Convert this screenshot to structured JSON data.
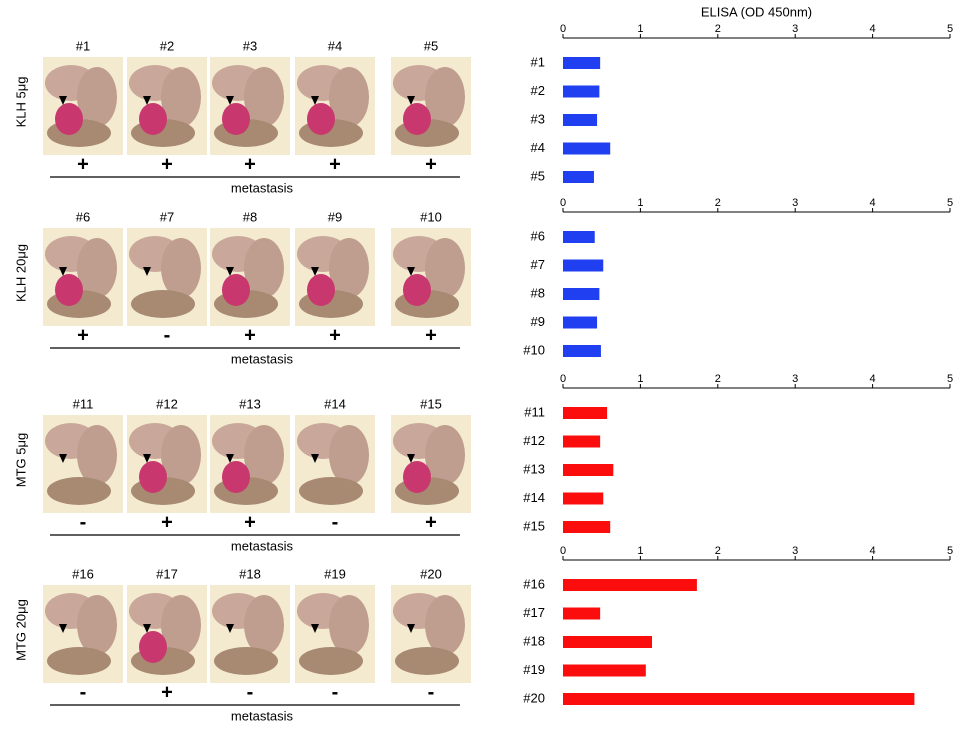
{
  "panels": [
    {
      "group": "KLH 5μg",
      "labels": [
        "#1",
        "#2",
        "#3",
        "#4",
        "#5"
      ],
      "signs": [
        "+",
        "+",
        "+",
        "+",
        "+"
      ],
      "caption": "metastasis"
    },
    {
      "group": "KLH 20μg",
      "labels": [
        "#6",
        "#7",
        "#8",
        "#9",
        "#10"
      ],
      "signs": [
        "+",
        "-",
        "+",
        "+",
        "+"
      ],
      "caption": "metastasis"
    },
    {
      "group": "MTG 5μg",
      "labels": [
        "#11",
        "#12",
        "#13",
        "#14",
        "#15"
      ],
      "signs": [
        "-",
        "+",
        "+",
        "-",
        "+"
      ],
      "caption": "metastasis"
    },
    {
      "group": "MTG 20μg",
      "labels": [
        "#16",
        "#17",
        "#18",
        "#19",
        "#20"
      ],
      "signs": [
        "-",
        "+",
        "-",
        "-",
        "-"
      ],
      "caption": "metastasis"
    }
  ],
  "chart_data": [
    {
      "type": "hbar",
      "x_label": "ELISA (OD 450nm)",
      "categories": [
        "#1",
        "#2",
        "#3",
        "#4",
        "#5"
      ],
      "values": [
        0.48,
        0.47,
        0.44,
        0.61,
        0.4
      ],
      "color": "#1f3ff0",
      "xlim": [
        0,
        5
      ],
      "xticks": [
        0,
        1,
        2,
        3,
        4,
        5
      ]
    },
    {
      "type": "hbar",
      "categories": [
        "#6",
        "#7",
        "#8",
        "#9",
        "#10"
      ],
      "values": [
        0.41,
        0.52,
        0.47,
        0.44,
        0.49
      ],
      "color": "#1f3ff0",
      "xlim": [
        0,
        5
      ],
      "xticks": [
        0,
        1,
        2,
        3,
        4,
        5
      ]
    },
    {
      "type": "hbar",
      "categories": [
        "#11",
        "#12",
        "#13",
        "#14",
        "#15"
      ],
      "values": [
        0.57,
        0.48,
        0.65,
        0.52,
        0.61
      ],
      "color": "#fb0d0d",
      "xlim": [
        0,
        5
      ],
      "xticks": [
        0,
        1,
        2,
        3,
        4,
        5
      ]
    },
    {
      "type": "hbar",
      "categories": [
        "#16",
        "#17",
        "#18",
        "#19",
        "#20"
      ],
      "values": [
        1.73,
        0.48,
        1.15,
        1.07,
        4.54
      ],
      "color": "#fb0d0d",
      "xlim": [
        0,
        5
      ],
      "xticks": [
        0,
        1,
        2,
        3,
        4,
        5
      ]
    }
  ]
}
